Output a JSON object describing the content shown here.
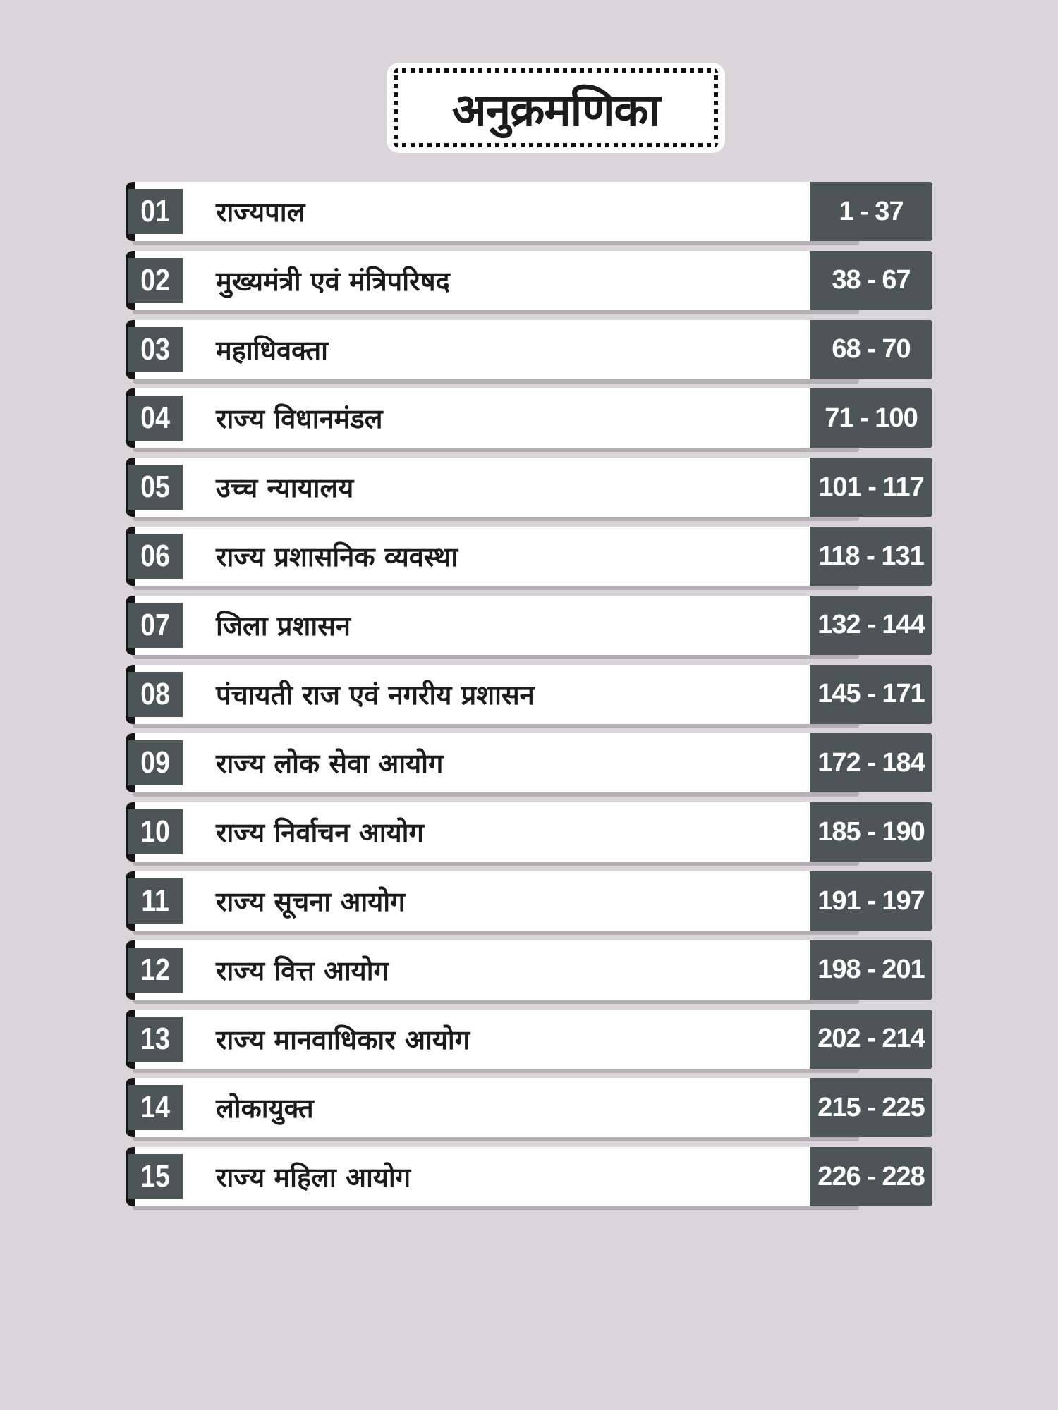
{
  "title": "अनुक्रमणिका",
  "colors": {
    "background": "#d9d5d9",
    "accent_dark": "#4e5557",
    "text": "#1b1a1c"
  },
  "entries": [
    {
      "number": "01",
      "title": "राज्यपाल",
      "pages": "1 - 37"
    },
    {
      "number": "02",
      "title": "मुख्यमंत्री एवं मंत्रिपरिषद",
      "pages": "38 - 67"
    },
    {
      "number": "03",
      "title": "महाधिवक्ता",
      "pages": "68 - 70"
    },
    {
      "number": "04",
      "title": "राज्य विधानमंडल",
      "pages": "71 - 100"
    },
    {
      "number": "05",
      "title": "उच्च न्यायालय",
      "pages": "101 - 117"
    },
    {
      "number": "06",
      "title": "राज्य प्रशासनिक व्यवस्था",
      "pages": "118 - 131"
    },
    {
      "number": "07",
      "title": "जिला प्रशासन",
      "pages": "132 - 144"
    },
    {
      "number": "08",
      "title": "पंचायती राज एवं नगरीय प्रशासन",
      "pages": "145 - 171"
    },
    {
      "number": "09",
      "title": "राज्य लोक सेवा आयोग",
      "pages": "172 - 184"
    },
    {
      "number": "10",
      "title": "राज्य निर्वाचन आयोग",
      "pages": "185 - 190"
    },
    {
      "number": "11",
      "title": "राज्य सूचना आयोग",
      "pages": "191 - 197"
    },
    {
      "number": "12",
      "title": "राज्य वित्त आयोग",
      "pages": "198 - 201"
    },
    {
      "number": "13",
      "title": "राज्य मानवाधिकार आयोग",
      "pages": "202 - 214"
    },
    {
      "number": "14",
      "title": "लोकायुक्त",
      "pages": "215 - 225"
    },
    {
      "number": "15",
      "title": "राज्य महिला आयोग",
      "pages": "226 - 228"
    }
  ]
}
